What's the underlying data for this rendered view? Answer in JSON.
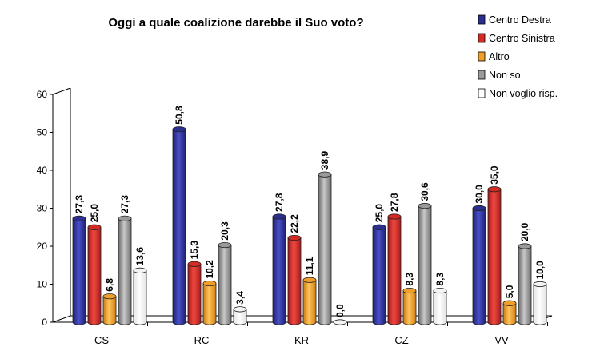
{
  "chart_data": {
    "type": "bar",
    "title": "Oggi a quale coalizione darebbe il Suo voto?",
    "xlabel": "",
    "ylabel": "",
    "ylim": [
      0,
      60
    ],
    "yticks": [
      "0",
      "10",
      "20",
      "30",
      "40",
      "50",
      "60"
    ],
    "categories": [
      "CS",
      "RC",
      "KR",
      "CZ",
      "VV"
    ],
    "series": [
      {
        "name": "Centro Destra",
        "color": "#2b2f8f",
        "values": [
          27.3,
          50.8,
          27.8,
          25.0,
          30.0
        ],
        "labels": [
          "27,3",
          "50,8",
          "27,8",
          "25,0",
          "30,0"
        ]
      },
      {
        "name": "Centro Sinistra",
        "color": "#d42a24",
        "values": [
          25.0,
          15.3,
          22.2,
          27.8,
          35.0
        ],
        "labels": [
          "25,0",
          "15,3",
          "22,2",
          "27,8",
          "35,0"
        ]
      },
      {
        "name": "Altro",
        "color": "#f0a02a",
        "values": [
          6.8,
          10.2,
          11.1,
          8.3,
          5.0
        ],
        "labels": [
          "6,8",
          "10,2",
          "11,1",
          "8,3",
          "5,0"
        ]
      },
      {
        "name": "Non so",
        "color": "#9a9a9a",
        "values": [
          27.3,
          20.3,
          38.9,
          30.6,
          20.0
        ],
        "labels": [
          "27,3",
          "20,3",
          "38,9",
          "30,6",
          "20,0"
        ]
      },
      {
        "name": "Non voglio risp.",
        "color": "#ffffff",
        "values": [
          13.6,
          3.4,
          0.0,
          8.3,
          10.0
        ],
        "labels": [
          "13,6",
          "3,4",
          "0,0",
          "8,3",
          "10,0"
        ]
      }
    ],
    "legend_position": "top-right",
    "grid": false
  }
}
